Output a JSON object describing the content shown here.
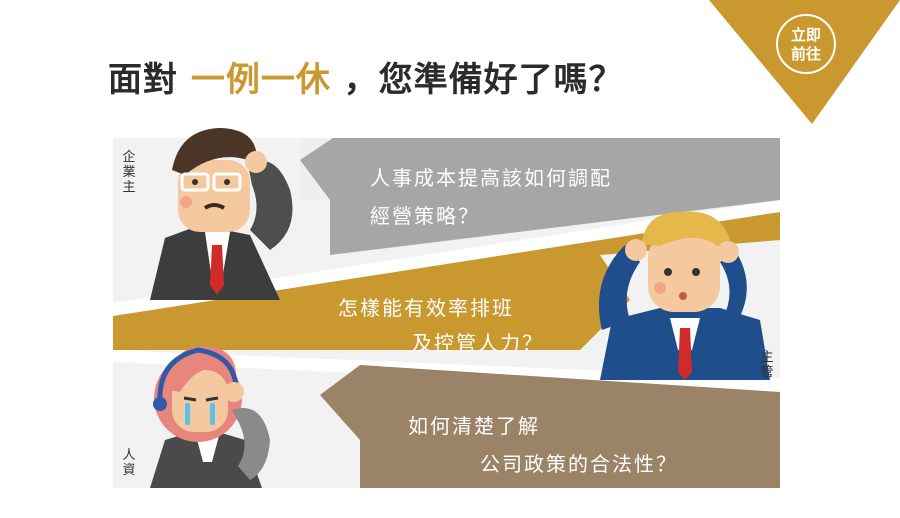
{
  "header": {
    "title_prefix": "面對",
    "title_highlight": "一例一休",
    "title_suffix": "，您準備好了嗎？"
  },
  "cta": {
    "line1": "立即",
    "line2": "前往",
    "color": "#c9982f"
  },
  "panels": [
    {
      "role_label": "企業主",
      "lines": [
        "人事成本提高該如何調配",
        "經營策略？"
      ],
      "color": "#a6a6a6"
    },
    {
      "role_label": "主管",
      "lines": [
        "怎樣能有效率排班",
        "及控管人力？"
      ],
      "color": "#c9982f"
    },
    {
      "role_label": "人資",
      "lines": [
        "如何清楚了解",
        "公司政策的合法性？"
      ],
      "color": "#9b8367"
    }
  ]
}
